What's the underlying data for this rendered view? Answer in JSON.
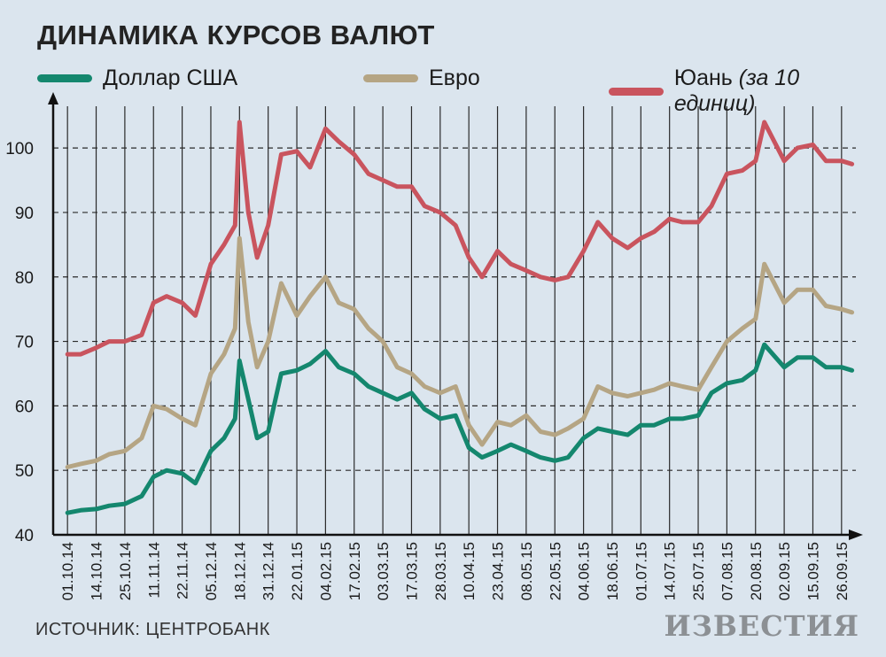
{
  "title": "ДИНАМИКА КУРСОВ ВАЛЮТ",
  "source": "ИСТОЧНИК: ЦЕНТРОБАНК",
  "brand": "ИЗВЕСТИЯ",
  "legend": [
    {
      "name": "Доллар США",
      "note": "",
      "color": "#14876e"
    },
    {
      "name": "Евро",
      "note": "",
      "color": "#b5a584"
    },
    {
      "name": "Юань",
      "note": "(за 10 единиц)",
      "color": "#c9545e"
    }
  ],
  "chart_data": {
    "type": "line",
    "title": "ДИНАМИКА КУРСОВ ВАЛЮТ",
    "xlabel": "",
    "ylabel": "",
    "ylim": [
      40,
      105
    ],
    "yticks": [
      40,
      50,
      60,
      70,
      80,
      90,
      100
    ],
    "grid": true,
    "legend_position": "top",
    "x_tick_labels": [
      "01.10.14",
      "14.10.14",
      "25.10.14",
      "11.11.14",
      "22.11.14",
      "05.12.14",
      "18.12.14",
      "31.12.14",
      "22.01.15",
      "04.02.15",
      "17.02.15",
      "03.03.15",
      "17.03.15",
      "28.03.15",
      "10.04.15",
      "23.04.15",
      "08.05.15",
      "22.05.15",
      "04.06.15",
      "18.06.15",
      "01.07.15",
      "14.07.15",
      "25.07.15",
      "07.08.15",
      "20.08.15",
      "02.09.15",
      "15.09.15",
      "26.09.15"
    ],
    "x": [
      "01.10.14",
      "07.10.14",
      "14.10.14",
      "19.10.14",
      "25.10.14",
      "04.11.14",
      "11.11.14",
      "16.11.14",
      "22.11.14",
      "28.11.14",
      "05.12.14",
      "11.12.14",
      "16.12.14",
      "18.12.14",
      "22.12.14",
      "26.12.14",
      "31.12.14",
      "10.01.15",
      "22.01.15",
      "28.01.15",
      "04.02.15",
      "10.02.15",
      "17.02.15",
      "24.02.15",
      "03.03.15",
      "10.03.15",
      "17.03.15",
      "22.03.15",
      "28.03.15",
      "04.04.15",
      "10.04.15",
      "16.04.15",
      "23.04.15",
      "30.04.15",
      "08.05.15",
      "15.05.15",
      "22.05.15",
      "28.05.15",
      "04.06.15",
      "11.06.15",
      "18.06.15",
      "25.06.15",
      "01.07.15",
      "07.07.15",
      "14.07.15",
      "19.07.15",
      "25.07.15",
      "31.07.15",
      "07.08.15",
      "14.08.15",
      "20.08.15",
      "24.08.15",
      "02.09.15",
      "08.09.15",
      "15.09.15",
      "20.09.15",
      "26.09.15",
      "30.09.15"
    ],
    "series": [
      {
        "name": "Доллар США",
        "color": "#14876e",
        "values": [
          43.4,
          43.8,
          44.0,
          44.5,
          44.8,
          46.0,
          49.0,
          50.0,
          49.5,
          48.0,
          53.0,
          55.0,
          58.0,
          67.0,
          61.0,
          55.0,
          56.0,
          65.0,
          65.5,
          66.5,
          68.5,
          66.0,
          65.0,
          63.0,
          62.0,
          61.0,
          62.0,
          59.5,
          58.0,
          58.5,
          53.5,
          52.0,
          53.0,
          54.0,
          53.0,
          52.0,
          51.5,
          52.0,
          55.0,
          56.5,
          56.0,
          55.5,
          57.0,
          57.0,
          58.0,
          58.0,
          58.5,
          62.0,
          63.5,
          64.0,
          65.5,
          69.5,
          66.0,
          67.5,
          67.5,
          66.0,
          66.0,
          65.5
        ]
      },
      {
        "name": "Евро",
        "color": "#b5a584",
        "values": [
          50.5,
          51.0,
          51.5,
          52.5,
          53.0,
          55.0,
          60.0,
          59.5,
          58.0,
          57.0,
          65.0,
          68.0,
          72.0,
          86.0,
          73.0,
          66.0,
          70.0,
          79.0,
          74.0,
          77.0,
          80.0,
          76.0,
          75.0,
          72.0,
          70.0,
          66.0,
          65.0,
          63.0,
          62.0,
          63.0,
          57.0,
          54.0,
          57.5,
          57.0,
          58.5,
          56.0,
          55.5,
          56.5,
          58.0,
          63.0,
          62.0,
          61.5,
          62.0,
          62.5,
          63.5,
          63.0,
          62.5,
          66.0,
          70.0,
          72.0,
          73.5,
          82.0,
          76.0,
          78.0,
          78.0,
          75.5,
          75.0,
          74.5
        ]
      },
      {
        "name": "Юань",
        "color": "#c9545e",
        "values": [
          68.0,
          68.0,
          69.0,
          70.0,
          70.0,
          71.0,
          76.0,
          77.0,
          76.0,
          74.0,
          82.0,
          85.0,
          88.0,
          104.0,
          90.0,
          83.0,
          88.0,
          99.0,
          99.5,
          97.0,
          103.0,
          101.0,
          99.0,
          96.0,
          95.0,
          94.0,
          94.0,
          91.0,
          90.0,
          88.0,
          83.0,
          80.0,
          84.0,
          82.0,
          81.0,
          80.0,
          79.5,
          80.0,
          84.0,
          88.5,
          86.0,
          84.5,
          86.0,
          87.0,
          89.0,
          88.5,
          88.5,
          91.0,
          96.0,
          96.5,
          98.0,
          104.0,
          98.0,
          100.0,
          100.5,
          98.0,
          98.0,
          97.5
        ]
      }
    ]
  }
}
